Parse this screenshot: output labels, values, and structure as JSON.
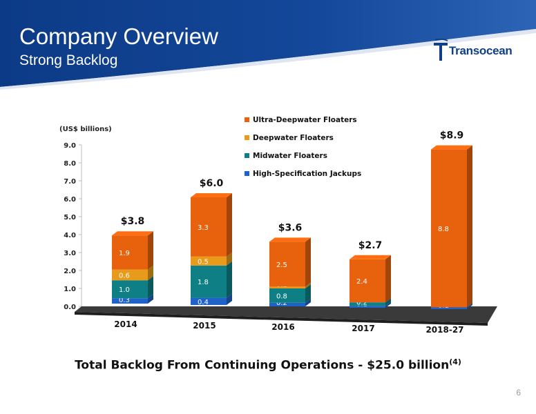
{
  "header": {
    "title": "Company Overview",
    "subtitle": "Strong Backlog",
    "logo_text": "Transocean",
    "colors": {
      "band": "#0f3f8c",
      "band_light": "#2f67b8"
    }
  },
  "chart_data": {
    "type": "bar",
    "stacked": true,
    "ylabel": "(US$ billions)",
    "ylim": [
      0,
      9
    ],
    "yticks": [
      "0.0",
      "1.0",
      "2.0",
      "3.0",
      "4.0",
      "5.0",
      "6.0",
      "7.0",
      "8.0",
      "9.0"
    ],
    "categories": [
      "2014",
      "2015",
      "2016",
      "2017",
      "2018-27"
    ],
    "totals": [
      "$3.8",
      "$6.0",
      "$3.6",
      "$2.7",
      "$8.9"
    ],
    "series": [
      {
        "name": "High-Specification Jackups",
        "color": "#1f62c9",
        "values": [
          0.3,
          0.4,
          0.2,
          0.1,
          0.1
        ],
        "labels": [
          "0.3",
          "0.4",
          "0.2",
          "0.1",
          "0.1"
        ]
      },
      {
        "name": "Midwater Floaters",
        "color": "#0e7f84",
        "values": [
          1.0,
          1.8,
          0.8,
          0.2,
          0
        ],
        "labels": [
          "1.0",
          "1.8",
          "0.8",
          "0.2",
          ""
        ]
      },
      {
        "name": "Deepwater Floaters",
        "color": "#e89a1a",
        "values": [
          0.6,
          0.5,
          0.1,
          0,
          0
        ],
        "labels": [
          "0.6",
          "0.5",
          "0.1",
          "",
          ""
        ]
      },
      {
        "name": "Ultra-Deepwater Floaters",
        "color": "#e8620e",
        "values": [
          1.9,
          3.3,
          2.5,
          2.4,
          8.8
        ],
        "labels": [
          "1.9",
          "3.3",
          "2.5",
          "2.4",
          "8.8"
        ]
      }
    ],
    "legend_order": [
      "Ultra-Deepwater Floaters",
      "Deepwater Floaters",
      "Midwater Floaters",
      "High-Specification Jackups"
    ],
    "legend_position": "top-center",
    "grid": false
  },
  "footnote": {
    "text": "Total Backlog From Continuing Operations - $25.0 billion",
    "sup": "(4)"
  },
  "page_number": "6"
}
